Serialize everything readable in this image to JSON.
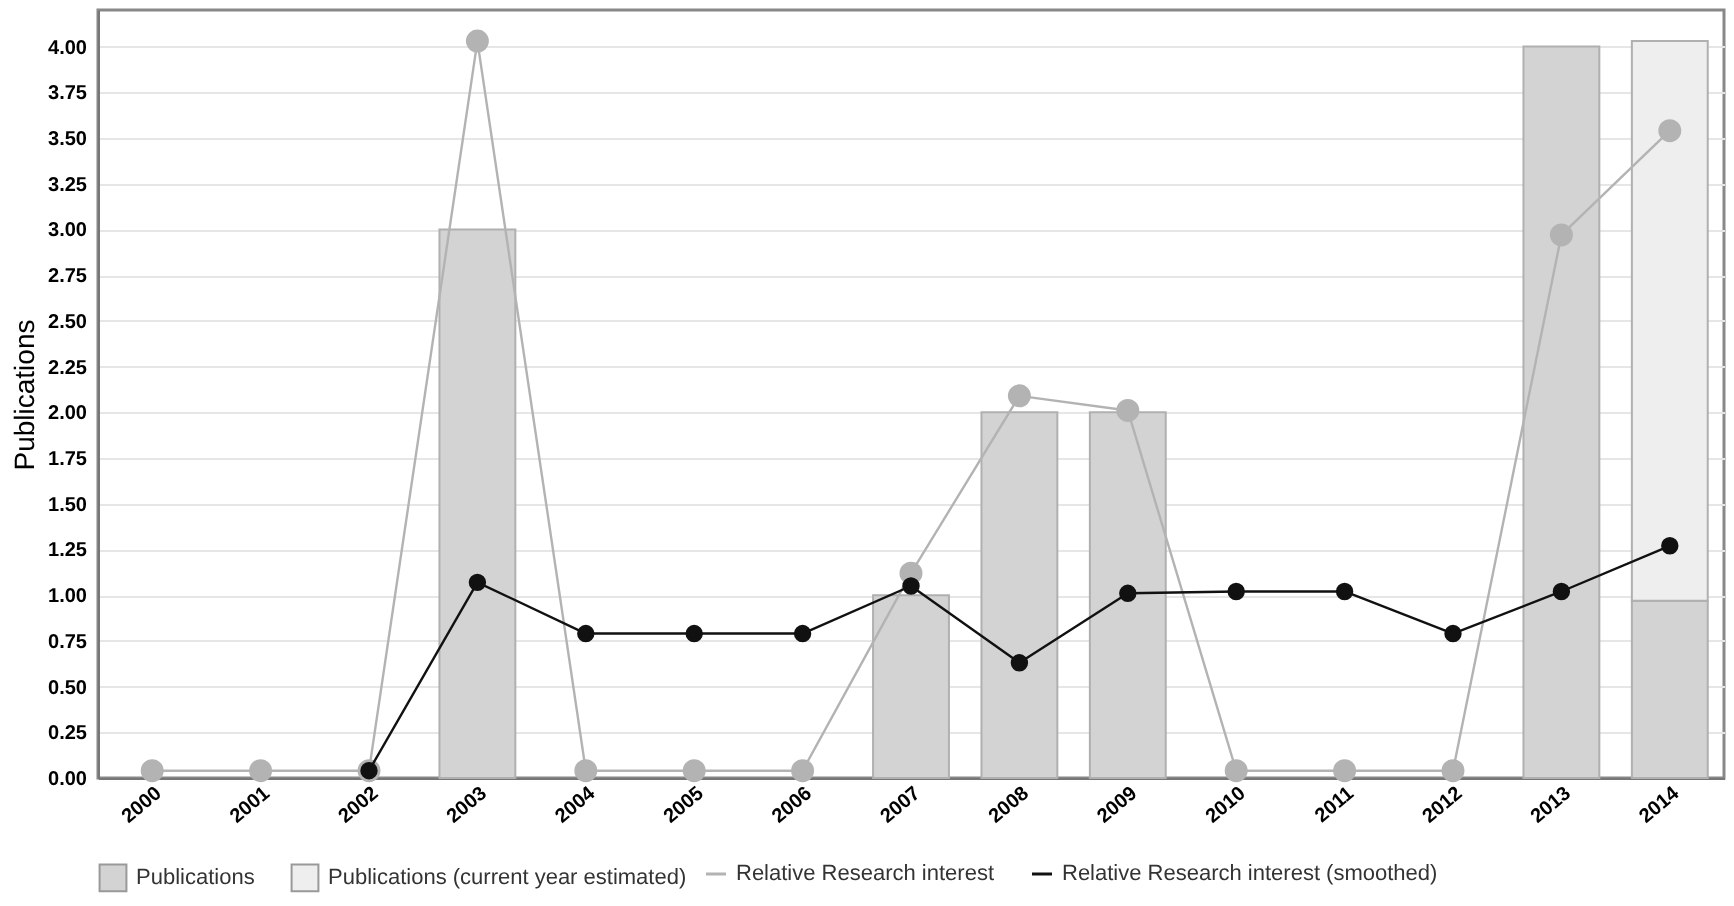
{
  "chart_data": {
    "type": "bar",
    "ylabel": "Publications",
    "categories": [
      "2000",
      "2001",
      "2002",
      "2003",
      "2004",
      "2005",
      "2006",
      "2007",
      "2008",
      "2009",
      "2010",
      "2011",
      "2012",
      "2013",
      "2014"
    ],
    "stacked": true,
    "series": [
      {
        "name": "Publications",
        "color": "#d3d3d3",
        "values": [
          null,
          null,
          null,
          3,
          null,
          null,
          null,
          1,
          2,
          2,
          null,
          null,
          null,
          4,
          0.97
        ]
      },
      {
        "name": "Publications (current year estimated)",
        "color": "#eeeeee",
        "values": [
          null,
          null,
          null,
          null,
          null,
          null,
          null,
          null,
          null,
          null,
          null,
          null,
          null,
          null,
          3.06
        ]
      },
      {
        "name": "Relative Research interest",
        "type": "line",
        "color": "#b3b3b3",
        "marker": "circle",
        "values": [
          0.04,
          0.04,
          0.04,
          4.03,
          0.04,
          0.04,
          0.04,
          1.12,
          2.09,
          2.01,
          0.04,
          0.04,
          0.04,
          2.97,
          3.54
        ]
      },
      {
        "name": "Relative Research interest (smoothed)",
        "type": "line",
        "color": "#111111",
        "marker": "circle",
        "values": [
          null,
          null,
          0.04,
          1.07,
          0.79,
          0.79,
          0.79,
          1.05,
          0.63,
          1.01,
          1.02,
          1.02,
          0.79,
          1.02,
          1.27
        ]
      }
    ],
    "ylim": [
      0,
      4.2
    ],
    "yticks": [
      {
        "value": 0,
        "label": "0.00"
      },
      {
        "value": 0.25,
        "label": "0.25"
      },
      {
        "value": 0.5,
        "label": "0.50"
      },
      {
        "value": 0.75,
        "label": "0.75"
      },
      {
        "value": 1,
        "label": "1.00"
      },
      {
        "value": 1.25,
        "label": "1.25"
      },
      {
        "value": 1.5,
        "label": "1.50"
      },
      {
        "value": 1.75,
        "label": "1.75"
      },
      {
        "value": 2,
        "label": "2.00"
      },
      {
        "value": 2.25,
        "label": "2.25"
      },
      {
        "value": 2.5,
        "label": "2.50"
      },
      {
        "value": 2.75,
        "label": "2.75"
      },
      {
        "value": 3,
        "label": "3.00"
      },
      {
        "value": 3.25,
        "label": "3.25"
      },
      {
        "value": 3.5,
        "label": "3.50"
      },
      {
        "value": 3.75,
        "label": "3.75"
      },
      {
        "value": 4,
        "label": "4.00"
      }
    ],
    "grid": "y",
    "legend": "bottom"
  }
}
